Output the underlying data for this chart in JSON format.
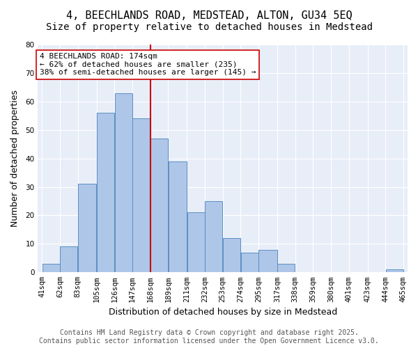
{
  "title_line1": "4, BEECHLANDS ROAD, MEDSTEAD, ALTON, GU34 5EQ",
  "title_line2": "Size of property relative to detached houses in Medstead",
  "xlabel": "Distribution of detached houses by size in Medstead",
  "ylabel": "Number of detached properties",
  "bin_edges": [
    41,
    62,
    83,
    105,
    126,
    147,
    168,
    189,
    211,
    232,
    253,
    274,
    295,
    317,
    338,
    359,
    380,
    401,
    423,
    444,
    465
  ],
  "bar_labels": [
    "41sqm",
    "62sqm",
    "83sqm",
    "105sqm",
    "126sqm",
    "147sqm",
    "168sqm",
    "189sqm",
    "211sqm",
    "232sqm",
    "253sqm",
    "274sqm",
    "295sqm",
    "317sqm",
    "338sqm",
    "359sqm",
    "380sqm",
    "401sqm",
    "423sqm",
    "444sqm",
    "465sqm"
  ],
  "values": [
    3,
    9,
    31,
    56,
    63,
    54,
    47,
    39,
    21,
    25,
    12,
    7,
    8,
    3,
    0,
    0,
    0,
    0,
    0,
    1
  ],
  "bar_color": "#aec6e8",
  "bar_edge_color": "#5b8fc4",
  "vline_x": 168,
  "vline_color": "#cc0000",
  "annotation_text": "4 BEECHLANDS ROAD: 174sqm\n← 62% of detached houses are smaller (235)\n38% of semi-detached houses are larger (145) →",
  "annotation_box_color": "white",
  "annotation_box_edge": "#cc0000",
  "ylim": [
    0,
    80
  ],
  "yticks": [
    0,
    10,
    20,
    30,
    40,
    50,
    60,
    70,
    80
  ],
  "background_color": "#e8eef8",
  "footer_text": "Contains HM Land Registry data © Crown copyright and database right 2025.\nContains public sector information licensed under the Open Government Licence v3.0.",
  "title_fontsize": 11,
  "subtitle_fontsize": 10,
  "axis_label_fontsize": 9,
  "tick_fontsize": 7.5,
  "annotation_fontsize": 8,
  "footer_fontsize": 7
}
